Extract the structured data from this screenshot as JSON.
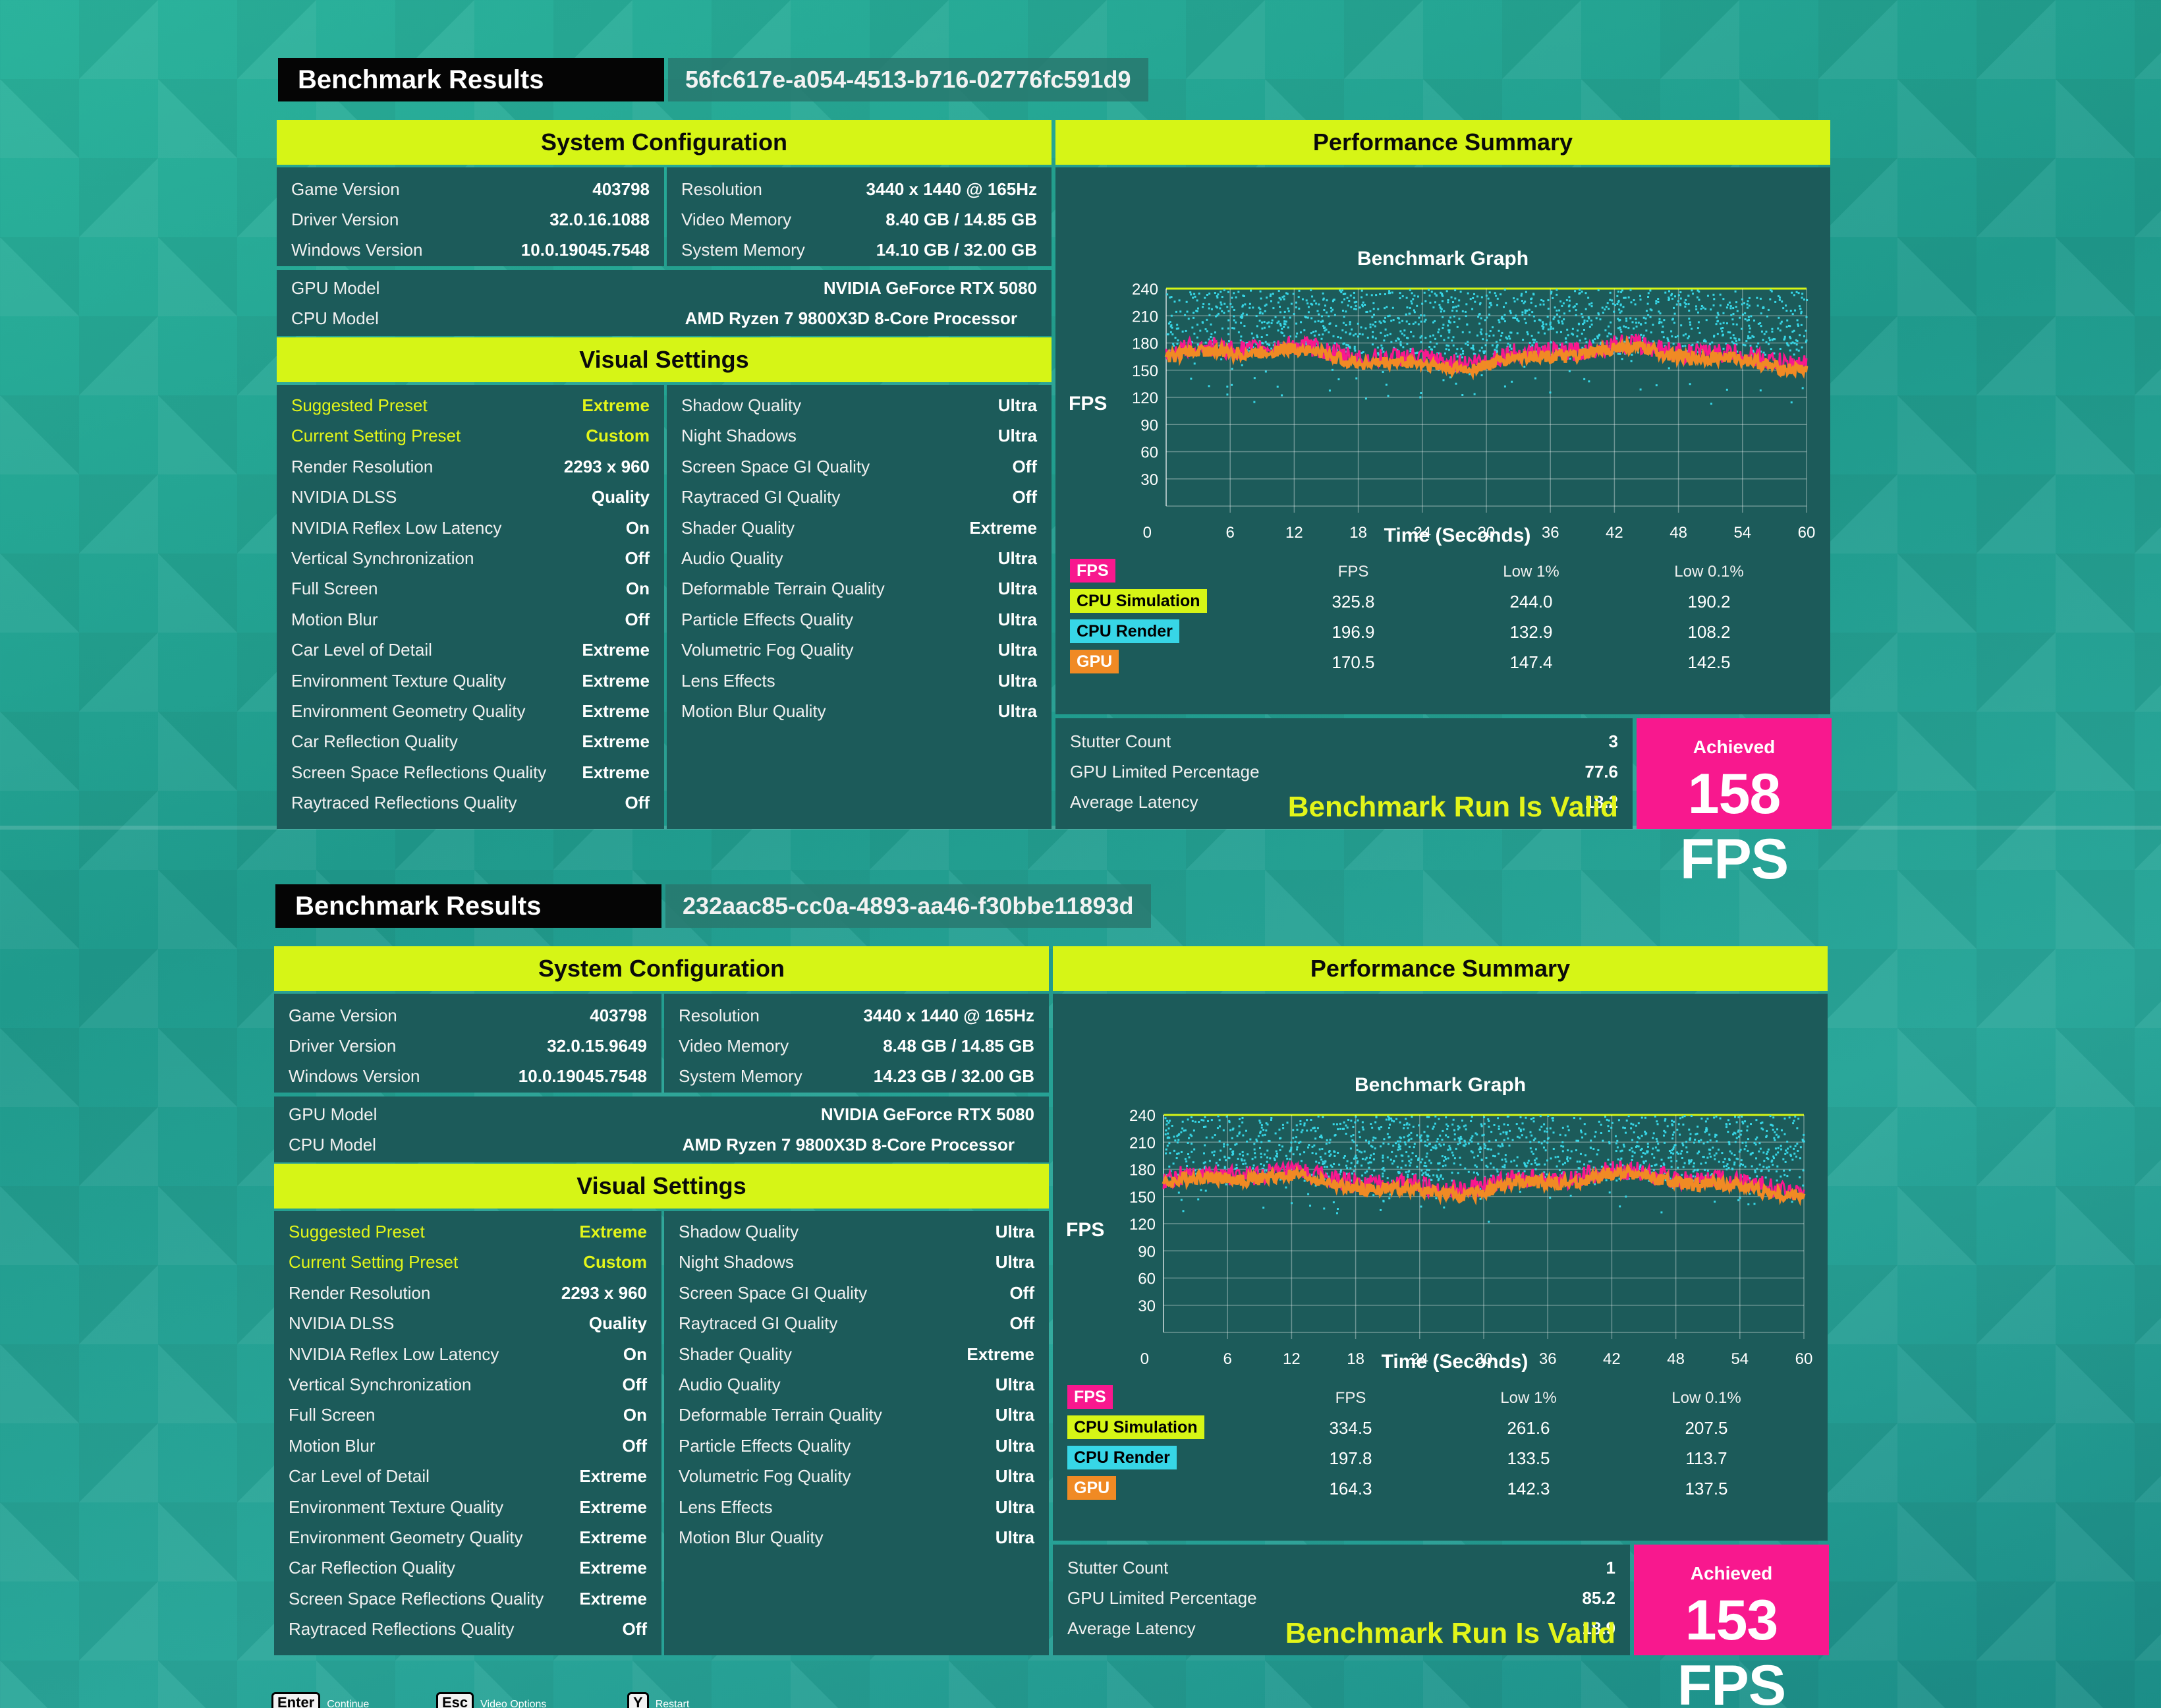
{
  "results": [
    {
      "title": "Benchmark Results",
      "run_id": "56fc617e-a054-4513-b716-02776fc591d9",
      "system_configuration": {
        "header": "System Configuration",
        "left": [
          {
            "k": "Game Version",
            "v": "403798"
          },
          {
            "k": "Driver Version",
            "v": "32.0.16.1088"
          },
          {
            "k": "Windows Version",
            "v": "10.0.19045.7548"
          }
        ],
        "right": [
          {
            "k": "Resolution",
            "v": "3440 x 1440 @ 165Hz"
          },
          {
            "k": "Video Memory",
            "v": "8.40 GB / 14.85 GB"
          },
          {
            "k": "System Memory",
            "v": "14.10 GB / 32.00 GB"
          }
        ],
        "hardware": [
          {
            "k": "GPU Model",
            "v": "NVIDIA GeForce RTX 5080"
          },
          {
            "k": "CPU Model",
            "v": "AMD Ryzen 7 9800X3D 8-Core Processor"
          }
        ]
      },
      "visual_settings": {
        "header": "Visual Settings",
        "left": [
          {
            "k": "Suggested Preset",
            "v": "Extreme"
          },
          {
            "k": "Current Setting Preset",
            "v": "Custom"
          },
          {
            "k": "Render Resolution",
            "v": "2293 x 960"
          },
          {
            "k": "NVIDIA DLSS",
            "v": "Quality"
          },
          {
            "k": "NVIDIA Reflex Low Latency",
            "v": "On"
          },
          {
            "k": "Vertical Synchronization",
            "v": "Off"
          },
          {
            "k": "Full Screen",
            "v": "On"
          },
          {
            "k": "Motion Blur",
            "v": "Off"
          },
          {
            "k": "Car Level of Detail",
            "v": "Extreme"
          },
          {
            "k": "Environment Texture Quality",
            "v": "Extreme"
          },
          {
            "k": "Environment Geometry Quality",
            "v": "Extreme"
          },
          {
            "k": "Car Reflection Quality",
            "v": "Extreme"
          },
          {
            "k": "Screen Space Reflections Quality",
            "v": "Extreme"
          },
          {
            "k": "Raytraced Reflections Quality",
            "v": "Off"
          }
        ],
        "right": [
          {
            "k": "Shadow Quality",
            "v": "Ultra"
          },
          {
            "k": "Night Shadows",
            "v": "Ultra"
          },
          {
            "k": "Screen Space GI Quality",
            "v": "Off"
          },
          {
            "k": "Raytraced GI Quality",
            "v": "Off"
          },
          {
            "k": "Shader Quality",
            "v": "Extreme"
          },
          {
            "k": "Audio Quality",
            "v": "Ultra"
          },
          {
            "k": "Deformable Terrain Quality",
            "v": "Ultra"
          },
          {
            "k": "Particle Effects Quality",
            "v": "Ultra"
          },
          {
            "k": "Volumetric Fog Quality",
            "v": "Ultra"
          },
          {
            "k": "Lens Effects",
            "v": "Ultra"
          },
          {
            "k": "Motion Blur Quality",
            "v": "Ultra"
          }
        ]
      },
      "performance": {
        "header": "Performance Summary",
        "graph_title": "Benchmark Graph",
        "y_label": "FPS",
        "x_label": "Time (Seconds)",
        "stats_headers": [
          "FPS",
          "Low 1%",
          "Low 0.1%"
        ],
        "stats": [
          {
            "name": "CPU Simulation",
            "values": [
              "325.8",
              "244.0",
              "190.2"
            ]
          },
          {
            "name": "CPU Render",
            "values": [
              "196.9",
              "132.9",
              "108.2"
            ]
          },
          {
            "name": "GPU",
            "values": [
              "170.5",
              "147.4",
              "142.5"
            ]
          }
        ],
        "legend_fps": "FPS",
        "summary": [
          {
            "k": "Stutter Count",
            "v": "3"
          },
          {
            "k": "GPU Limited Percentage",
            "v": "77.6"
          },
          {
            "k": "Average Latency",
            "v": "18.2"
          }
        ],
        "valid_text": "Benchmark Run Is Valid",
        "achieved_label": "Achieved",
        "achieved_value": "158 FPS"
      }
    },
    {
      "title": "Benchmark Results",
      "run_id": "232aac85-cc0a-4893-aa46-f30bbe11893d",
      "system_configuration": {
        "header": "System Configuration",
        "left": [
          {
            "k": "Game Version",
            "v": "403798"
          },
          {
            "k": "Driver Version",
            "v": "32.0.15.9649"
          },
          {
            "k": "Windows Version",
            "v": "10.0.19045.7548"
          }
        ],
        "right": [
          {
            "k": "Resolution",
            "v": "3440 x 1440 @ 165Hz"
          },
          {
            "k": "Video Memory",
            "v": "8.48 GB / 14.85 GB"
          },
          {
            "k": "System Memory",
            "v": "14.23 GB / 32.00 GB"
          }
        ],
        "hardware": [
          {
            "k": "GPU Model",
            "v": "NVIDIA GeForce RTX 5080"
          },
          {
            "k": "CPU Model",
            "v": "AMD Ryzen 7 9800X3D 8-Core Processor"
          }
        ]
      },
      "visual_settings": {
        "header": "Visual Settings",
        "left": [
          {
            "k": "Suggested Preset",
            "v": "Extreme"
          },
          {
            "k": "Current Setting Preset",
            "v": "Custom"
          },
          {
            "k": "Render Resolution",
            "v": "2293 x 960"
          },
          {
            "k": "NVIDIA DLSS",
            "v": "Quality"
          },
          {
            "k": "NVIDIA Reflex Low Latency",
            "v": "On"
          },
          {
            "k": "Vertical Synchronization",
            "v": "Off"
          },
          {
            "k": "Full Screen",
            "v": "On"
          },
          {
            "k": "Motion Blur",
            "v": "Off"
          },
          {
            "k": "Car Level of Detail",
            "v": "Extreme"
          },
          {
            "k": "Environment Texture Quality",
            "v": "Extreme"
          },
          {
            "k": "Environment Geometry Quality",
            "v": "Extreme"
          },
          {
            "k": "Car Reflection Quality",
            "v": "Extreme"
          },
          {
            "k": "Screen Space Reflections Quality",
            "v": "Extreme"
          },
          {
            "k": "Raytraced Reflections Quality",
            "v": "Off"
          }
        ],
        "right": [
          {
            "k": "Shadow Quality",
            "v": "Ultra"
          },
          {
            "k": "Night Shadows",
            "v": "Ultra"
          },
          {
            "k": "Screen Space GI Quality",
            "v": "Off"
          },
          {
            "k": "Raytraced GI Quality",
            "v": "Off"
          },
          {
            "k": "Shader Quality",
            "v": "Extreme"
          },
          {
            "k": "Audio Quality",
            "v": "Ultra"
          },
          {
            "k": "Deformable Terrain Quality",
            "v": "Ultra"
          },
          {
            "k": "Particle Effects Quality",
            "v": "Ultra"
          },
          {
            "k": "Volumetric Fog Quality",
            "v": "Ultra"
          },
          {
            "k": "Lens Effects",
            "v": "Ultra"
          },
          {
            "k": "Motion Blur Quality",
            "v": "Ultra"
          }
        ]
      },
      "performance": {
        "header": "Performance Summary",
        "graph_title": "Benchmark Graph",
        "y_label": "FPS",
        "x_label": "Time (Seconds)",
        "stats_headers": [
          "FPS",
          "Low 1%",
          "Low 0.1%"
        ],
        "stats": [
          {
            "name": "CPU Simulation",
            "values": [
              "334.5",
              "261.6",
              "207.5"
            ]
          },
          {
            "name": "CPU Render",
            "values": [
              "197.8",
              "133.5",
              "113.7"
            ]
          },
          {
            "name": "GPU",
            "values": [
              "164.3",
              "142.3",
              "137.5"
            ]
          }
        ],
        "legend_fps": "FPS",
        "summary": [
          {
            "k": "Stutter Count",
            "v": "1"
          },
          {
            "k": "GPU Limited Percentage",
            "v": "85.2"
          },
          {
            "k": "Average Latency",
            "v": "18.9"
          }
        ],
        "valid_text": "Benchmark Run Is Valid",
        "achieved_label": "Achieved",
        "achieved_value": "153 FPS"
      }
    }
  ],
  "graph_axes": {
    "y_ticks": [
      "240",
      "210",
      "180",
      "150",
      "120",
      "90",
      "60",
      "30",
      "0"
    ],
    "x_ticks": [
      "0",
      "6",
      "12",
      "18",
      "24",
      "30",
      "36",
      "42",
      "48",
      "54",
      "60"
    ],
    "y_range": [
      0,
      240
    ],
    "x_range": [
      0,
      60
    ]
  },
  "colors": {
    "accent_yellow": "#d6f516",
    "fps_pink": "#f8188e",
    "cpu_sim_yellow": "#d6f516",
    "cpu_render_cyan": "#37d6e6",
    "gpu_orange": "#f08a24",
    "panel_teal": "#1c5b5a"
  },
  "footer": [
    {
      "key": "Enter",
      "label": "Continue"
    },
    {
      "key": "Esc",
      "label": "Video Options"
    },
    {
      "key": "Y",
      "label": "Restart"
    }
  ]
}
